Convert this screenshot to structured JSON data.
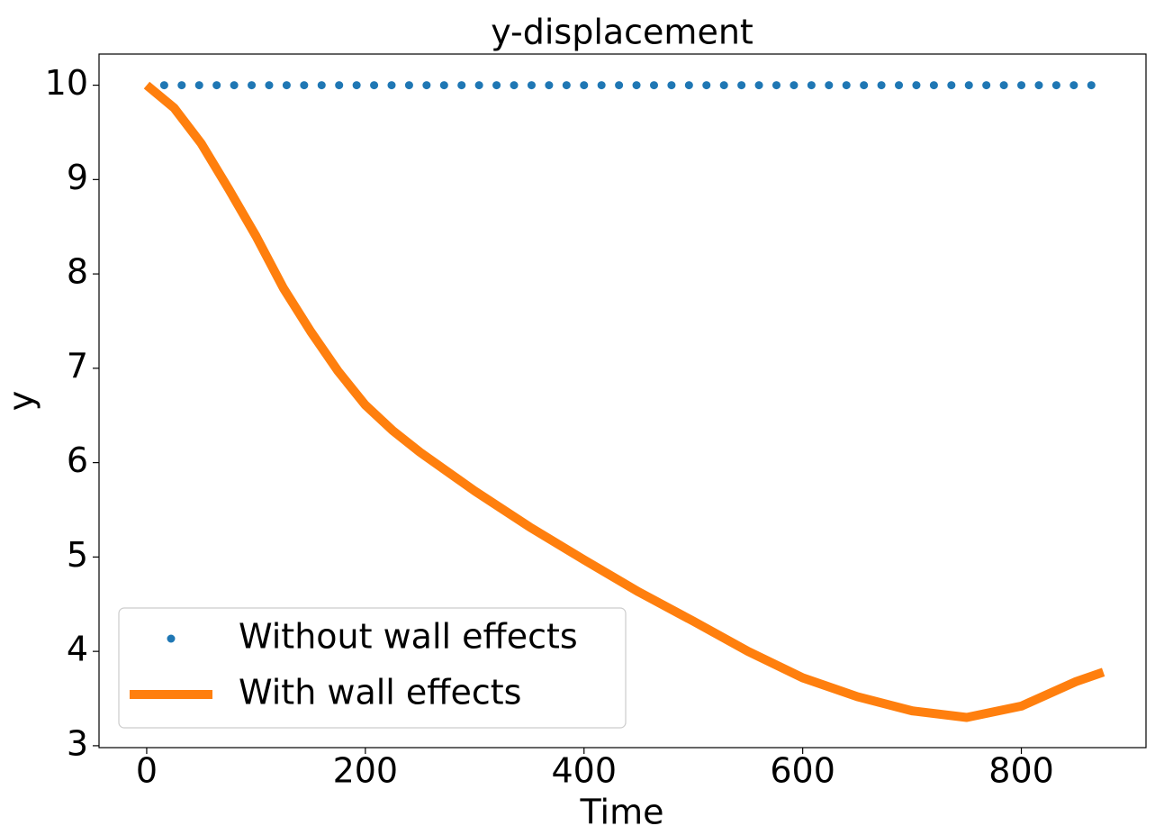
{
  "chart_data": {
    "type": "line",
    "title": "y-displacement",
    "x_label": "Time",
    "y_label": "y",
    "xlim": [
      -43.6,
      914
    ],
    "xticks": [
      0,
      200,
      400,
      600,
      800
    ],
    "ylim": [
      2.98,
      10.33
    ],
    "yticks": [
      3,
      4,
      5,
      6,
      7,
      8,
      9,
      10
    ],
    "legend": "lower left",
    "series": [
      {
        "name": "Without wall effects",
        "color": "#1f77b4",
        "style": "points",
        "x": [
          16,
          32,
          48,
          64,
          80,
          96,
          112,
          128,
          144,
          160,
          176,
          192,
          208,
          224,
          240,
          256,
          272,
          288,
          304,
          320,
          336,
          352,
          368,
          384,
          400,
          416,
          432,
          448,
          464,
          480,
          496,
          512,
          528,
          544,
          560,
          576,
          592,
          608,
          624,
          640,
          656,
          672,
          688,
          704,
          720,
          736,
          752,
          768,
          784,
          800,
          816,
          832,
          848,
          864
        ],
        "values": [
          10,
          10,
          10,
          10,
          10,
          10,
          10,
          10,
          10,
          10,
          10,
          10,
          10,
          10,
          10,
          10,
          10,
          10,
          10,
          10,
          10,
          10,
          10,
          10,
          10,
          10,
          10,
          10,
          10,
          10,
          10,
          10,
          10,
          10,
          10,
          10,
          10,
          10,
          10,
          10,
          10,
          10,
          10,
          10,
          10,
          10,
          10,
          10,
          10,
          10,
          10,
          10,
          10,
          10
        ]
      },
      {
        "name": "With wall effects",
        "color": "#ff7f0e",
        "style": "line",
        "x": [
          0,
          25,
          50,
          75,
          100,
          125,
          150,
          175,
          200,
          225,
          250,
          300,
          350,
          400,
          450,
          500,
          550,
          600,
          650,
          700,
          750,
          800,
          850,
          875
        ],
        "values": [
          10,
          9.76,
          9.38,
          8.9,
          8.4,
          7.85,
          7.39,
          6.97,
          6.61,
          6.34,
          6.11,
          5.7,
          5.32,
          4.97,
          4.63,
          4.32,
          4.0,
          3.72,
          3.52,
          3.37,
          3.3,
          3.42,
          3.68,
          3.78
        ]
      }
    ]
  }
}
